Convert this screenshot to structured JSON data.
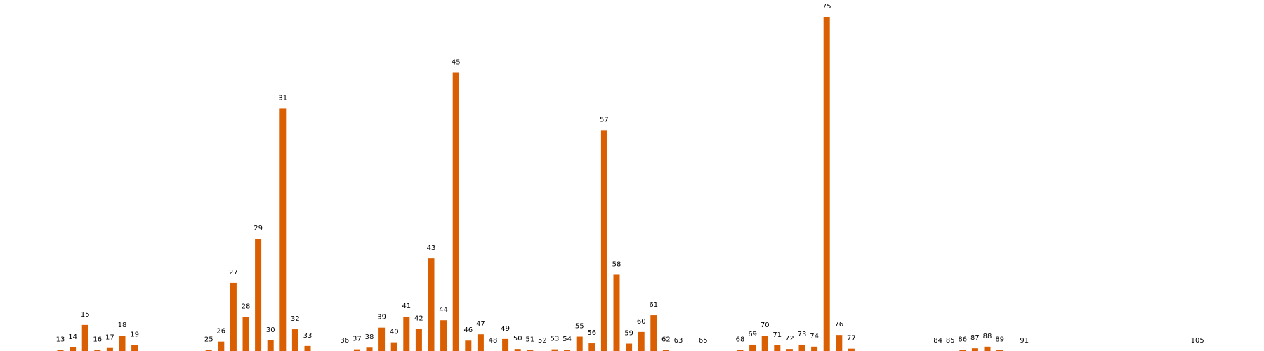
{
  "chart_data": {
    "type": "bar",
    "title": "",
    "xlabel": "",
    "ylabel": "",
    "grid": false,
    "axes_visible": false,
    "legend": "none",
    "bar_color": "#d95f02",
    "ylim": [
      0,
      100
    ],
    "categories": [
      "13",
      "14",
      "15",
      "16",
      "17",
      "18",
      "19",
      "25",
      "26",
      "27",
      "28",
      "29",
      "30",
      "31",
      "32",
      "33",
      "36",
      "37",
      "38",
      "39",
      "40",
      "41",
      "42",
      "43",
      "44",
      "45",
      "46",
      "47",
      "48",
      "49",
      "50",
      "51",
      "52",
      "53",
      "54",
      "55",
      "56",
      "57",
      "58",
      "59",
      "60",
      "61",
      "62",
      "63",
      "65",
      "68",
      "69",
      "70",
      "71",
      "72",
      "73",
      "74",
      "75",
      "76",
      "77",
      "84",
      "85",
      "86",
      "87",
      "88",
      "89",
      "91",
      "105"
    ],
    "x": [
      13,
      14,
      15,
      16,
      17,
      18,
      19,
      25,
      26,
      27,
      28,
      29,
      30,
      31,
      32,
      33,
      36,
      37,
      38,
      39,
      40,
      41,
      42,
      43,
      44,
      45,
      46,
      47,
      48,
      49,
      50,
      51,
      52,
      53,
      54,
      55,
      56,
      57,
      58,
      59,
      60,
      61,
      62,
      63,
      65,
      68,
      69,
      70,
      71,
      72,
      73,
      74,
      75,
      76,
      77,
      84,
      85,
      86,
      87,
      88,
      89,
      91,
      105
    ],
    "values": [
      0.3,
      1.1,
      7.8,
      0.3,
      0.9,
      4.6,
      1.8,
      0.3,
      2.8,
      20.4,
      10.2,
      33.6,
      3.2,
      72.6,
      6.5,
      1.5,
      0,
      0.5,
      1.0,
      7.0,
      2.6,
      10.3,
      6.6,
      27.7,
      9.2,
      83.3,
      3.1,
      5.0,
      0,
      3.6,
      0.6,
      0.3,
      0,
      0.5,
      0.4,
      4.3,
      2.3,
      66.1,
      22.8,
      2.2,
      5.7,
      10.7,
      0.3,
      0,
      0,
      0.3,
      1.9,
      4.6,
      1.7,
      0.6,
      1.9,
      1.3,
      100.0,
      4.8,
      0.7,
      0,
      0,
      0.3,
      0.8,
      1.3,
      0.3,
      0,
      0
    ]
  }
}
